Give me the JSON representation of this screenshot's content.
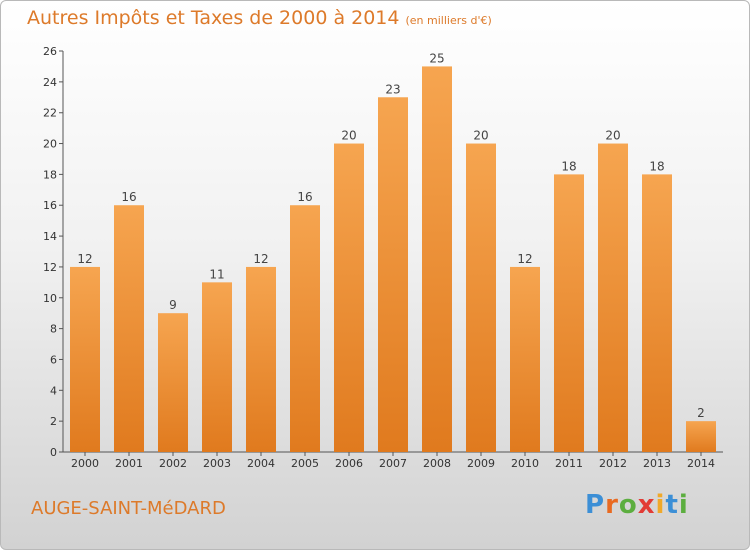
{
  "title": "Autres Impôts et Taxes de 2000 à 2014",
  "unit": "(en milliers d'€)",
  "commune": "AUGE-SAINT-MéDARD",
  "logo": {
    "p": "P",
    "r": "r",
    "o": "o",
    "x": "x",
    "i1": "i",
    "t": "t",
    "i2": "i"
  },
  "colors": {
    "bar_top": "#f6a550",
    "bar_bottom": "#e07a1e",
    "title": "#dd7a2a"
  },
  "chart_data": {
    "type": "bar",
    "categories": [
      "2000",
      "2001",
      "2002",
      "2003",
      "2004",
      "2005",
      "2006",
      "2007",
      "2008",
      "2009",
      "2010",
      "2011",
      "2012",
      "2013",
      "2014"
    ],
    "values": [
      12,
      16,
      9,
      11,
      12,
      16,
      20,
      23,
      25,
      20,
      12,
      18,
      20,
      18,
      2
    ],
    "ylim": [
      0,
      26
    ],
    "yticks": [
      0,
      2,
      4,
      6,
      8,
      10,
      12,
      14,
      16,
      18,
      20,
      22,
      24,
      26
    ],
    "grid": false,
    "legend": "none"
  }
}
